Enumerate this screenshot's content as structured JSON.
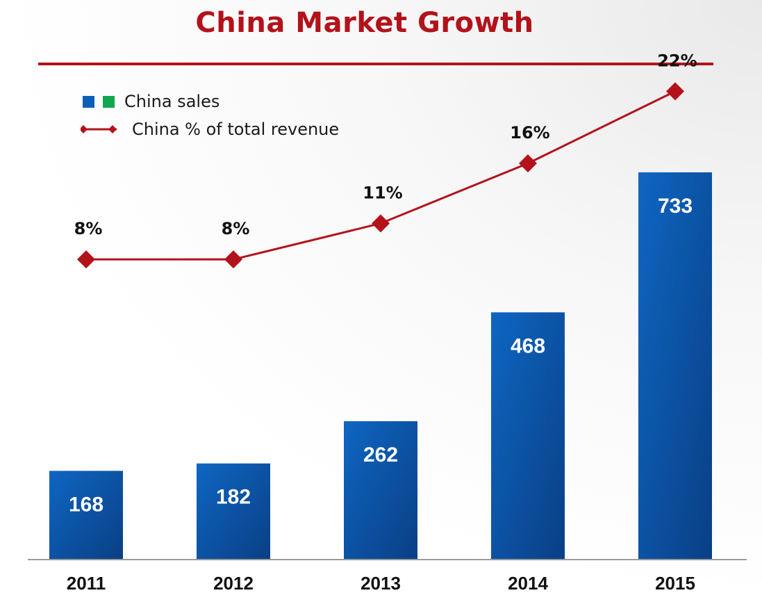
{
  "title": "China Market Growth",
  "legend": {
    "bars_label": "China sales",
    "line_label": "China % of total revenue"
  },
  "colors": {
    "bar_top": "#0e66c2",
    "bar_bottom": "#0a3f85",
    "line": "#b3121b",
    "title": "#b3121b",
    "legend_green": "#12a64f"
  },
  "chart_data": {
    "type": "bar+line",
    "categories": [
      "2011",
      "2012",
      "2013",
      "2014",
      "2015"
    ],
    "series": [
      {
        "name": "China sales",
        "type": "bar",
        "values": [
          168,
          182,
          262,
          468,
          733
        ],
        "labels": [
          "168",
          "182",
          "262",
          "468",
          "733"
        ]
      },
      {
        "name": "China % of total revenue",
        "type": "line",
        "values": [
          8,
          8,
          11,
          16,
          22
        ],
        "labels": [
          "8%",
          "8%",
          "11%",
          "16%",
          "22%"
        ]
      }
    ],
    "bar_axis_range": [
      0,
      1000
    ],
    "line_axis_range": [
      -17,
      27
    ],
    "grid": false,
    "legend_position": "top-left"
  }
}
